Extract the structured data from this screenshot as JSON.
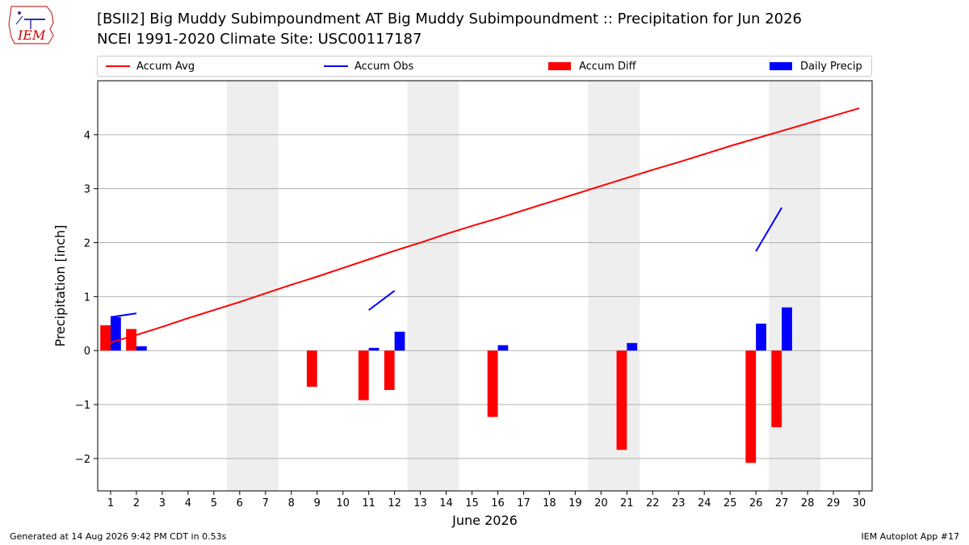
{
  "header": {
    "title": "[BSII2] Big Muddy Subimpoundment  AT Big Muddy Subimpoundment :: Precipitation for Jun 2026",
    "subtitle": "NCEI 1991-2020 Climate Site: USC00117187",
    "logo_text": "IEM"
  },
  "legend": [
    {
      "name": "Accum Avg",
      "kind": "line",
      "color": "#ff0000"
    },
    {
      "name": "Accum Obs",
      "kind": "line",
      "color": "#0000ff"
    },
    {
      "name": "Accum Diff",
      "kind": "bar",
      "color": "#ff0000"
    },
    {
      "name": "Daily Precip",
      "kind": "bar",
      "color": "#0000ff"
    }
  ],
  "footer": {
    "left": "Generated at 14 Aug 2026 9:42 PM CDT in 0.53s",
    "right": "IEM Autoplot App #17"
  },
  "chart_data": {
    "type": "bar",
    "xlabel": "June 2026",
    "ylabel": "Precipitation [inch]",
    "xlim": [
      0.5,
      30.5
    ],
    "ylim": [
      -2.6,
      5.0
    ],
    "x_ticks": [
      1,
      2,
      3,
      4,
      5,
      6,
      7,
      8,
      9,
      10,
      11,
      12,
      13,
      14,
      15,
      16,
      17,
      18,
      19,
      20,
      21,
      22,
      23,
      24,
      25,
      26,
      27,
      28,
      29,
      30
    ],
    "y_ticks": [
      -2,
      -1,
      0,
      1,
      2,
      3,
      4
    ],
    "y_tick_labels": [
      "−2",
      "−1",
      "0",
      "1",
      "2",
      "3",
      "4"
    ],
    "grid": "y",
    "weekend_shading": [
      [
        5.5,
        7.5
      ],
      [
        12.5,
        14.5
      ],
      [
        19.5,
        21.5
      ],
      [
        26.5,
        28.5
      ]
    ],
    "shade_color": "#eeeeee",
    "series": [
      {
        "name": "Accum Avg",
        "type": "line",
        "color": "#ff0000",
        "x": [
          1,
          2,
          3,
          4,
          5,
          6,
          7,
          8,
          9,
          10,
          11,
          12,
          13,
          14,
          15,
          16,
          17,
          18,
          19,
          20,
          21,
          22,
          23,
          24,
          25,
          26,
          27,
          28,
          29,
          30
        ],
        "values": [
          0.15,
          0.29,
          0.44,
          0.6,
          0.75,
          0.9,
          1.06,
          1.22,
          1.37,
          1.53,
          1.69,
          1.85,
          2.0,
          2.16,
          2.31,
          2.45,
          2.6,
          2.75,
          2.9,
          3.05,
          3.2,
          3.35,
          3.49,
          3.64,
          3.79,
          3.93,
          4.07,
          4.21,
          4.35,
          4.49
        ]
      },
      {
        "name": "Accum Obs",
        "type": "line",
        "color": "#0000ff",
        "segments": [
          {
            "x": [
              1,
              2
            ],
            "values": [
              0.62,
              0.69
            ]
          },
          {
            "x": [
              11,
              12
            ],
            "values": [
              0.75,
              1.11
            ]
          },
          {
            "x": [
              26,
              27
            ],
            "values": [
              1.84,
              2.65
            ]
          }
        ]
      },
      {
        "name": "Accum Diff",
        "type": "bar",
        "color": "#ff0000",
        "x": [
          1,
          2,
          9,
          11,
          12,
          16,
          21,
          26,
          27
        ],
        "values": [
          0.47,
          0.4,
          -0.67,
          -0.92,
          -0.73,
          -1.23,
          -1.84,
          -2.08,
          -1.42
        ]
      },
      {
        "name": "Daily Precip",
        "type": "bar",
        "color": "#0000ff",
        "x": [
          1,
          2,
          11,
          12,
          16,
          21,
          26,
          27
        ],
        "values": [
          0.62,
          0.08,
          0.05,
          0.35,
          0.1,
          0.14,
          0.5,
          0.8
        ]
      }
    ]
  }
}
